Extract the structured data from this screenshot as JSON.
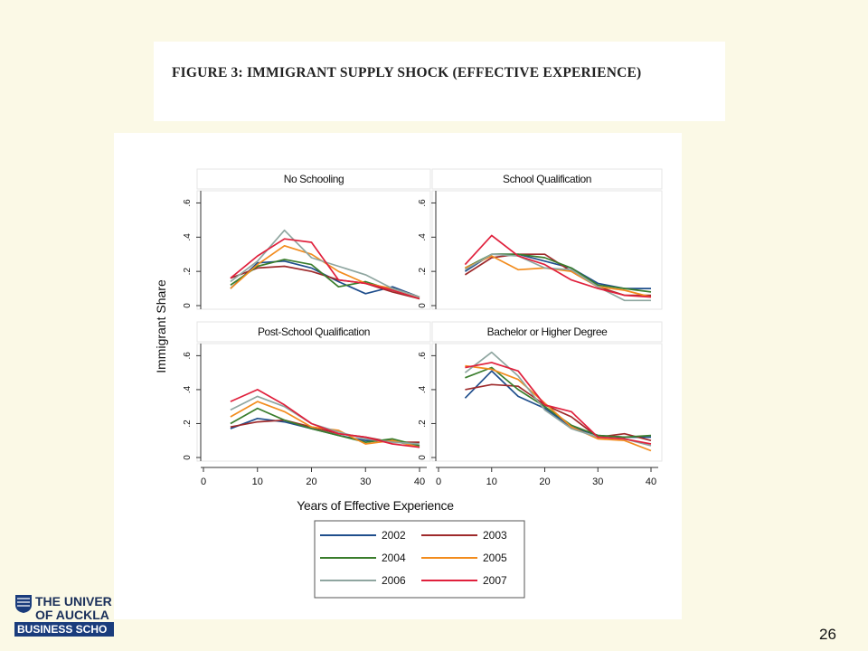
{
  "slide": {
    "figure_title": "FIGURE 3: IMMIGRANT SUPPLY SHOCK (EFFECTIVE EXPERIENCE)",
    "page_number": "26",
    "logo": {
      "line1": "THE UNIVER",
      "line2": "OF AUCKLA",
      "line3": "BUSINESS SCHO"
    }
  },
  "chart_data": {
    "type": "line",
    "ylabel": "Immigrant Share",
    "xlabel": "Years of Effective Experience",
    "x": [
      5,
      10,
      15,
      20,
      25,
      30,
      35,
      40
    ],
    "xticks": [
      "0",
      "10",
      "20",
      "30",
      "40"
    ],
    "xlim": [
      0,
      40
    ],
    "grid": false,
    "legend": {
      "placement": "bottom",
      "columns": 2
    },
    "series_meta": [
      {
        "name": "2002",
        "color": "#1f4e8c"
      },
      {
        "name": "2003",
        "color": "#9e2a2b"
      },
      {
        "name": "2004",
        "color": "#3a7d2c"
      },
      {
        "name": "2005",
        "color": "#f28c1e"
      },
      {
        "name": "2006",
        "color": "#8fa6a0"
      },
      {
        "name": "2007",
        "color": "#e0203c"
      }
    ],
    "panels": [
      {
        "title": "No Schooling",
        "yticks": [
          "0",
          ".2",
          ".4",
          ".6"
        ],
        "ylim": [
          0,
          0.65
        ],
        "series": [
          [
            0.1,
            0.25,
            0.26,
            0.22,
            0.14,
            0.07,
            0.11,
            0.05
          ],
          [
            0.16,
            0.22,
            0.23,
            0.2,
            0.15,
            0.13,
            0.08,
            0.04
          ],
          [
            0.12,
            0.23,
            0.27,
            0.24,
            0.11,
            0.14,
            0.09,
            0.04
          ],
          [
            0.1,
            0.24,
            0.35,
            0.3,
            0.2,
            0.13,
            0.1,
            0.05
          ],
          [
            0.14,
            0.26,
            0.44,
            0.28,
            0.23,
            0.18,
            0.1,
            0.05
          ],
          [
            0.16,
            0.29,
            0.39,
            0.37,
            0.15,
            0.13,
            0.09,
            0.04
          ]
        ]
      },
      {
        "title": "School Qualification",
        "yticks": [
          "0",
          ".2",
          ".4",
          ".6"
        ],
        "ylim": [
          0,
          0.65
        ],
        "series": [
          [
            0.2,
            0.3,
            0.3,
            0.26,
            0.22,
            0.13,
            0.1,
            0.1
          ],
          [
            0.18,
            0.28,
            0.3,
            0.3,
            0.2,
            0.11,
            0.06,
            0.06
          ],
          [
            0.22,
            0.3,
            0.3,
            0.28,
            0.22,
            0.12,
            0.1,
            0.08
          ],
          [
            0.22,
            0.29,
            0.21,
            0.22,
            0.2,
            0.11,
            0.09,
            0.05
          ],
          [
            0.21,
            0.3,
            0.29,
            0.22,
            0.21,
            0.11,
            0.03,
            0.03
          ],
          [
            0.24,
            0.41,
            0.29,
            0.24,
            0.15,
            0.1,
            0.06,
            0.05
          ]
        ]
      },
      {
        "title": "Post-School Qualification",
        "yticks": [
          "0",
          ".2",
          ".4",
          ".6"
        ],
        "ylim": [
          0,
          0.65
        ],
        "series": [
          [
            0.17,
            0.23,
            0.21,
            0.17,
            0.13,
            0.1,
            0.1,
            0.06
          ],
          [
            0.18,
            0.21,
            0.22,
            0.18,
            0.14,
            0.12,
            0.09,
            0.09
          ],
          [
            0.2,
            0.29,
            0.22,
            0.17,
            0.13,
            0.09,
            0.11,
            0.07
          ],
          [
            0.24,
            0.33,
            0.27,
            0.18,
            0.16,
            0.08,
            0.1,
            0.06
          ],
          [
            0.28,
            0.36,
            0.3,
            0.2,
            0.15,
            0.11,
            0.09,
            0.08
          ],
          [
            0.33,
            0.4,
            0.31,
            0.2,
            0.14,
            0.12,
            0.08,
            0.06
          ]
        ]
      },
      {
        "title": "Bachelor or Higher Degree",
        "yticks": [
          "0",
          ".2",
          ".4",
          ".6"
        ],
        "ylim": [
          0,
          0.65
        ],
        "series": [
          [
            0.35,
            0.51,
            0.36,
            0.29,
            0.18,
            0.13,
            0.12,
            0.12
          ],
          [
            0.4,
            0.43,
            0.42,
            0.31,
            0.24,
            0.12,
            0.14,
            0.1
          ],
          [
            0.47,
            0.53,
            0.4,
            0.3,
            0.19,
            0.13,
            0.12,
            0.13
          ],
          [
            0.54,
            0.52,
            0.46,
            0.32,
            0.18,
            0.11,
            0.1,
            0.04
          ],
          [
            0.5,
            0.62,
            0.48,
            0.28,
            0.17,
            0.12,
            0.11,
            0.07
          ],
          [
            0.53,
            0.56,
            0.51,
            0.31,
            0.27,
            0.12,
            0.11,
            0.08
          ]
        ]
      }
    ]
  }
}
